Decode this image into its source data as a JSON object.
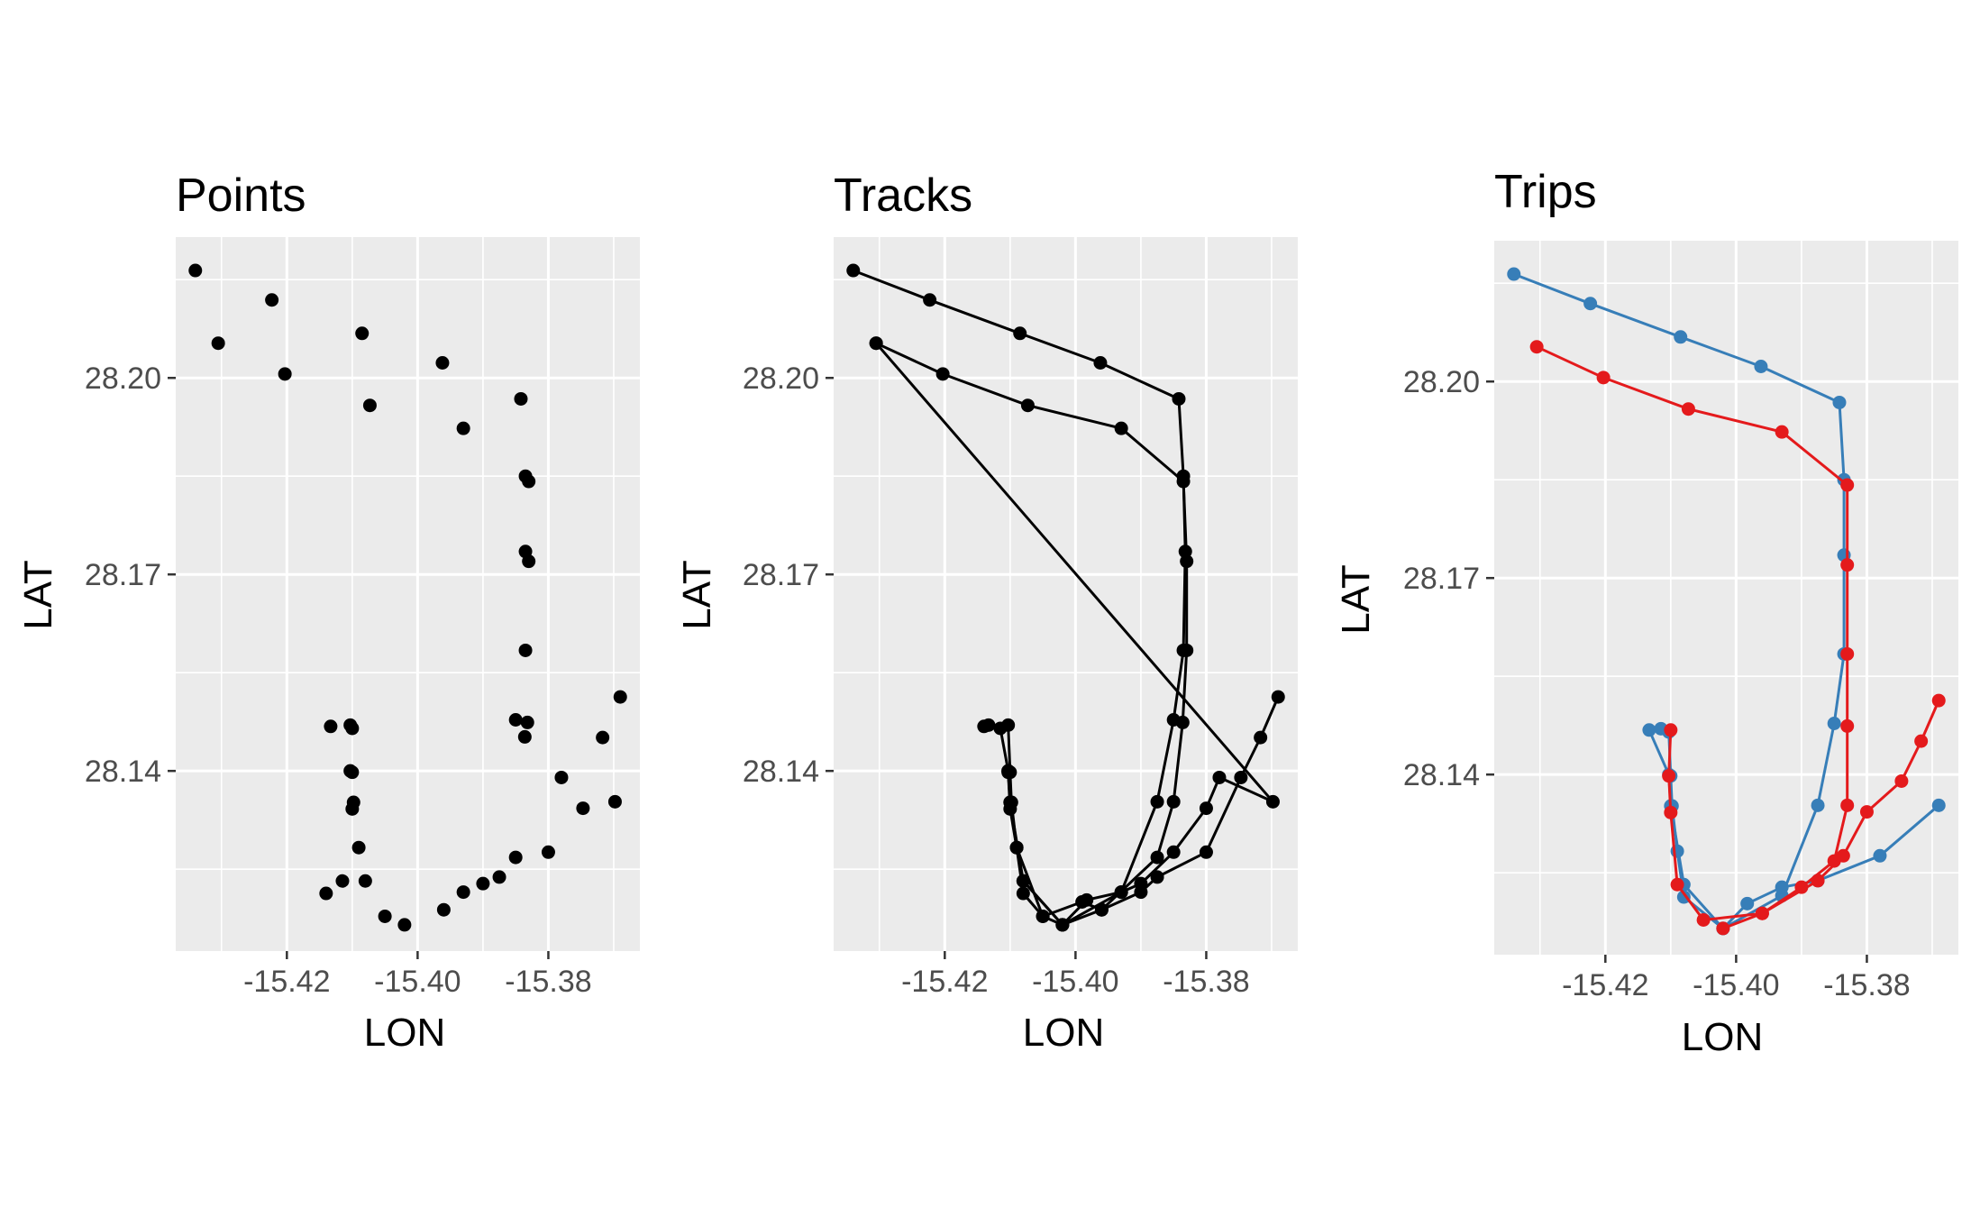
{
  "chart_data": [
    {
      "type": "scatter",
      "title": "Points",
      "xlabel": "LON",
      "ylabel": "LAT",
      "xlim": [
        -15.437,
        -15.366
      ],
      "ylim": [
        28.1125,
        28.2215
      ],
      "x_ticks": [
        "-15.42",
        "-15.40",
        "-15.38"
      ],
      "y_ticks": [
        "28.14",
        "28.17",
        "28.20"
      ],
      "x_tick_values": [
        -15.42,
        -15.4,
        -15.38
      ],
      "y_tick_values": [
        28.14,
        28.17,
        28.2
      ],
      "grid": true,
      "series": [
        {
          "color": "#000000",
          "connect": false,
          "x": [
            -15.434,
            -15.4305,
            -15.4223,
            -15.4203,
            -15.4085,
            -15.4073,
            -15.3962,
            -15.393,
            -15.3842,
            -15.3835,
            -15.383,
            -15.3835,
            -15.383,
            -15.3835,
            -15.3832,
            -15.385,
            -15.3836,
            -15.378,
            -15.3717,
            -15.369,
            -15.3698,
            -15.3747,
            -15.38,
            -15.385,
            -15.3875,
            -15.39,
            -15.393,
            -15.396,
            -15.402,
            -15.405,
            -15.408,
            -15.409,
            -15.4098,
            -15.41,
            -15.41,
            -15.4103,
            -15.4103,
            -15.41,
            -15.4115,
            -15.414,
            -15.4133
          ],
          "y": [
            28.2164,
            28.2053,
            28.2119,
            28.2006,
            28.2068,
            28.1958,
            28.2023,
            28.1923,
            28.1968,
            28.185,
            28.1842,
            28.1735,
            28.172,
            28.1584,
            28.1474,
            28.1478,
            28.1452,
            28.139,
            28.1451,
            28.1513,
            28.1353,
            28.1343,
            28.1276,
            28.1268,
            28.1238,
            28.1228,
            28.1215,
            28.1188,
            28.1165,
            28.1178,
            28.1232,
            28.1283,
            28.1352,
            28.1398,
            28.1465,
            28.147,
            28.14,
            28.1342,
            28.1232,
            28.1213,
            28.1468
          ]
        }
      ]
    },
    {
      "type": "line",
      "title": "Tracks",
      "xlabel": "LON",
      "ylabel": "LAT",
      "xlim": [
        -15.437,
        -15.366
      ],
      "ylim": [
        28.1125,
        28.2215
      ],
      "x_ticks": [
        "-15.42",
        "-15.40",
        "-15.38"
      ],
      "y_ticks": [
        "28.14",
        "28.17",
        "28.20"
      ],
      "x_tick_values": [
        -15.42,
        -15.4,
        -15.38
      ],
      "y_tick_values": [
        28.14,
        28.17,
        28.2
      ],
      "grid": true,
      "series": [
        {
          "color": "#000000",
          "x": [
            -15.434,
            -15.4223,
            -15.4085,
            -15.3962,
            -15.3842,
            -15.3835,
            -15.3832,
            -15.3835,
            -15.385,
            -15.3875,
            -15.393,
            -15.3983,
            -15.402,
            -15.408,
            -15.41,
            -15.4103,
            -15.4115,
            -15.4133
          ],
          "y": [
            28.2164,
            28.2119,
            28.2068,
            28.2023,
            28.1968,
            28.185,
            28.1735,
            28.1584,
            28.1478,
            28.1353,
            28.1215,
            28.1203,
            28.1165,
            28.1232,
            28.1352,
            28.14,
            28.1465,
            28.147
          ]
        },
        {
          "color": "#000000",
          "x": [
            -15.4305,
            -15.4203,
            -15.4073,
            -15.393,
            -15.3835,
            -15.383,
            -15.383,
            -15.3836,
            -15.385,
            -15.3875,
            -15.396,
            -15.399,
            -15.405,
            -15.409,
            -15.4098,
            -15.41,
            -15.4103,
            -15.414
          ],
          "y": [
            28.2053,
            28.2006,
            28.1958,
            28.1923,
            28.1842,
            28.172,
            28.1584,
            28.1474,
            28.1353,
            28.1268,
            28.1188,
            28.12,
            28.1178,
            28.1283,
            28.1352,
            28.1398,
            28.147,
            28.1468
          ]
        },
        {
          "color": "#000000",
          "x": [
            -15.4305,
            -15.3698,
            -15.378,
            -15.38,
            -15.385,
            -15.39,
            -15.393,
            -15.402,
            -15.408,
            -15.409,
            -15.41,
            -15.4103
          ],
          "y": [
            28.2053,
            28.1353,
            28.139,
            28.1343,
            28.1276,
            28.1228,
            28.1215,
            28.1165,
            28.1232,
            28.1283,
            28.1352,
            28.14
          ]
        },
        {
          "color": "#000000",
          "x": [
            -15.369,
            -15.3717,
            -15.3747,
            -15.38,
            -15.3875,
            -15.39,
            -15.396,
            -15.402,
            -15.405,
            -15.408,
            -15.409,
            -15.41,
            -15.4103
          ],
          "y": [
            28.1513,
            28.1451,
            28.139,
            28.1276,
            28.1238,
            28.1215,
            28.1188,
            28.1165,
            28.1178,
            28.1213,
            28.1283,
            28.1342,
            28.1398
          ]
        }
      ]
    },
    {
      "type": "line",
      "title": "Trips",
      "xlabel": "LON",
      "ylabel": "LAT",
      "xlim": [
        -15.437,
        -15.366
      ],
      "ylim": [
        28.1125,
        28.2215
      ],
      "x_ticks": [
        "-15.42",
        "-15.40",
        "-15.38"
      ],
      "y_ticks": [
        "28.14",
        "28.17",
        "28.20"
      ],
      "x_tick_values": [
        -15.42,
        -15.4,
        -15.38
      ],
      "y_tick_values": [
        28.14,
        28.17,
        28.2
      ],
      "grid": true,
      "series": [
        {
          "color": "#377EB8",
          "x": [
            -15.434,
            -15.4223,
            -15.4085,
            -15.3962,
            -15.3842,
            -15.3835,
            -15.3835,
            -15.3835,
            -15.385,
            -15.3875,
            -15.393,
            -15.402,
            -15.408,
            -15.41,
            -15.4103,
            -15.4133
          ],
          "y": [
            28.2164,
            28.2119,
            28.2068,
            28.2023,
            28.1968,
            28.185,
            28.1735,
            28.1584,
            28.1478,
            28.1353,
            28.1215,
            28.1165,
            28.1232,
            28.1352,
            28.14,
            28.1468
          ]
        },
        {
          "color": "#377EB8",
          "x": [
            -15.369,
            -15.378,
            -15.3875,
            -15.393,
            -15.3983,
            -15.402,
            -15.408,
            -15.409,
            -15.4098,
            -15.41,
            -15.4103,
            -15.4115
          ],
          "y": [
            28.1353,
            28.1276,
            28.1238,
            28.1228,
            28.1203,
            28.1165,
            28.1213,
            28.1283,
            28.1352,
            28.1398,
            28.1465,
            28.147
          ]
        },
        {
          "color": "#E41A1C",
          "x": [
            -15.4305,
            -15.4203,
            -15.4073,
            -15.393,
            -15.383,
            -15.383,
            -15.383,
            -15.383,
            -15.383,
            -15.385,
            -15.39,
            -15.396,
            -15.405,
            -15.409,
            -15.41,
            -15.4103,
            -15.41
          ],
          "y": [
            28.2053,
            28.2006,
            28.1958,
            28.1923,
            28.1842,
            28.172,
            28.1584,
            28.1474,
            28.1353,
            28.1268,
            28.1228,
            28.1188,
            28.1178,
            28.1232,
            28.1342,
            28.1398,
            28.1468
          ]
        },
        {
          "color": "#E41A1C",
          "x": [
            -15.369,
            -15.3717,
            -15.3747,
            -15.38,
            -15.3836,
            -15.3875,
            -15.396,
            -15.402
          ],
          "y": [
            28.1513,
            28.1451,
            28.139,
            28.1343,
            28.1276,
            28.1238,
            28.1188,
            28.1165
          ]
        }
      ]
    }
  ]
}
